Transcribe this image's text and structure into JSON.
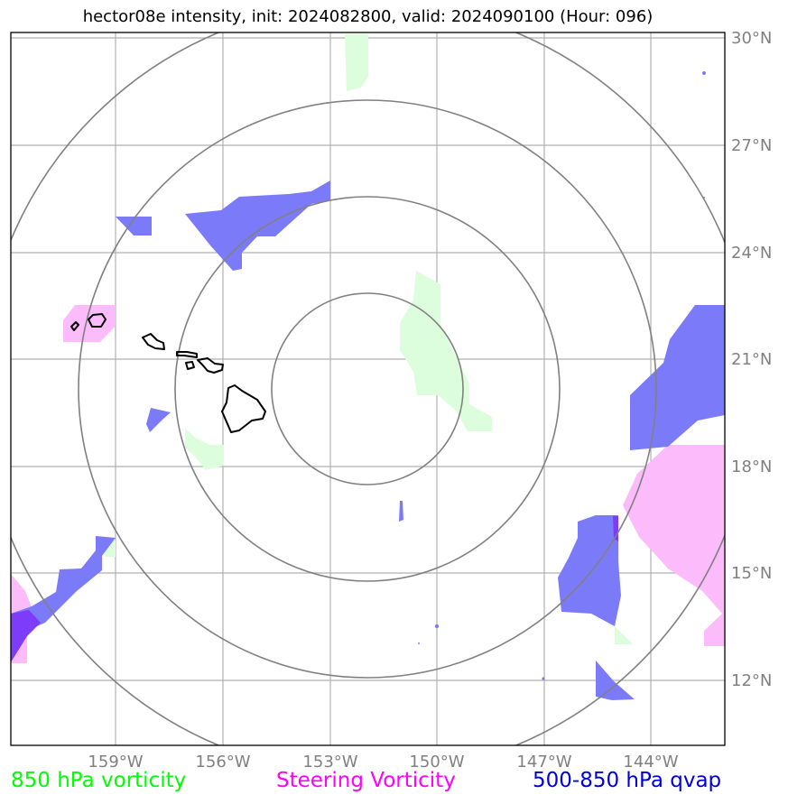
{
  "title": "hector08e intensity, init: 2024082800, valid: 2024090100 (Hour: 096)",
  "lat_labels": [
    "30°N",
    "27°N",
    "24°N",
    "21°N",
    "18°N",
    "15°N",
    "12°N"
  ],
  "lon_labels": [
    "159°W",
    "156°W",
    "153°W",
    "150°W",
    "147°W",
    "144°W"
  ],
  "legend": [
    {
      "label": "850 hPa vorticity",
      "color": "#00ff00"
    },
    {
      "label": "Steering Vorticity",
      "color": "#ff00ff"
    },
    {
      "label": "500-850 hPa qvap",
      "color": "#0000dd"
    }
  ],
  "colors": {
    "vorticity_850": "#dcfedc",
    "steering_vorticity": "#fcbcfc",
    "qvap": "#7b7bfa",
    "overlap": "#7c3cfa",
    "grid": "#b0b0b0",
    "range_rings": "#808080",
    "coastline": "#000000"
  },
  "map": {
    "extent": {
      "lon_min": "161.9°W",
      "lon_max": "141.9°W",
      "lat_min": "10.2°N",
      "lat_max": "30.2°N"
    },
    "range_rings": 4,
    "gridlines": true
  }
}
